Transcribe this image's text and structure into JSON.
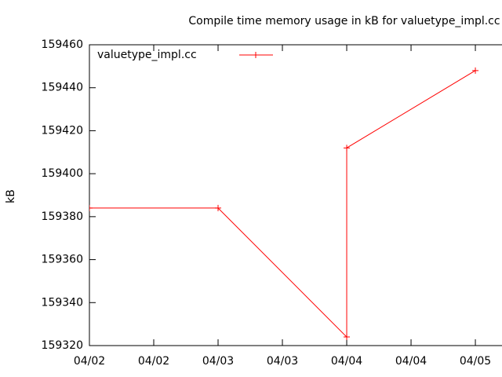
{
  "chart_data": {
    "type": "line",
    "title": "Compile time memory usage in kB for valuetype_impl.cc",
    "y_label": "kB",
    "x": [
      0,
      1,
      2,
      2,
      3
    ],
    "series": [
      {
        "name": "valuetype_impl.cc",
        "color": "#ff0000",
        "values": [
          159384,
          159384,
          159324,
          159412,
          159448
        ]
      }
    ],
    "xlim": [
      0,
      3.207
    ],
    "xticks": [
      {
        "value": 0,
        "label": "04/02"
      },
      {
        "value": 0.5,
        "label": "04/02"
      },
      {
        "value": 1,
        "label": "04/03"
      },
      {
        "value": 1.5,
        "label": "04/03"
      },
      {
        "value": 2,
        "label": "04/04"
      },
      {
        "value": 2.5,
        "label": "04/04"
      },
      {
        "value": 3,
        "label": "04/05"
      }
    ],
    "ylim": [
      159320,
      159460
    ],
    "yticks": [
      159320,
      159340,
      159360,
      159380,
      159400,
      159420,
      159440,
      159460
    ],
    "legend": "top-left"
  }
}
